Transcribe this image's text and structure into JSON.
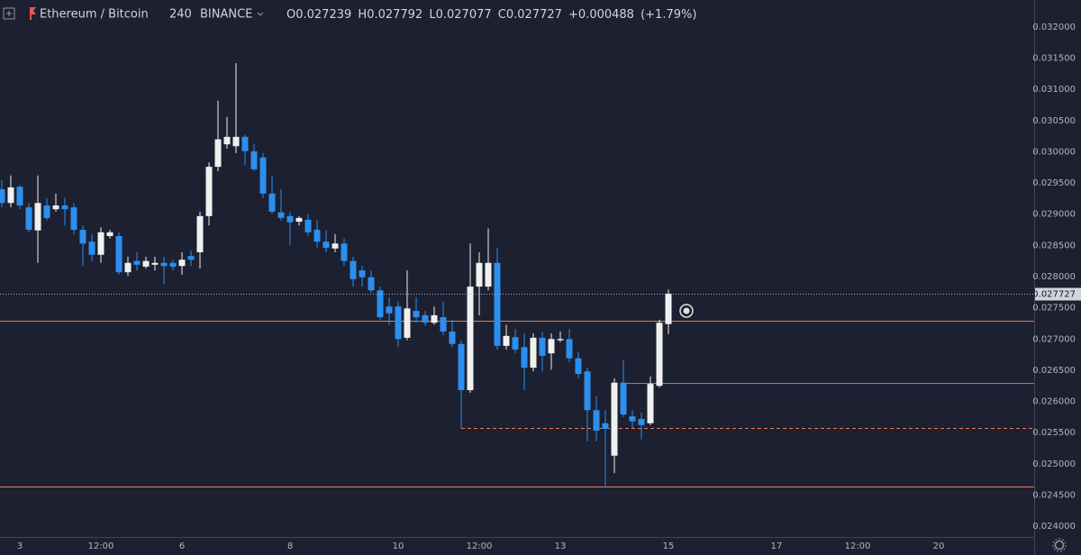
{
  "chart_data": {
    "type": "candlestick",
    "title": "Ethereum / Bitcoin",
    "interval": "240",
    "exchange": "BINANCE",
    "ohlc_labels": [
      "O",
      "H",
      "L",
      "C"
    ],
    "change": "+0.000488",
    "change_pct": "(+1.79%)",
    "up_color": "#f0f0f0",
    "down_color": "#2b8ff0",
    "categories": [
      null,
      null,
      "3",
      null,
      null,
      null,
      null,
      null,
      null,
      null,
      null,
      "12:00",
      null,
      null,
      null,
      null,
      null,
      null,
      null,
      null,
      "6",
      null,
      null,
      null,
      null,
      null,
      null,
      null,
      null,
      null,
      null,
      null,
      "8",
      null,
      null,
      null,
      null,
      null,
      null,
      null,
      null,
      null,
      null,
      null,
      "10",
      null,
      null,
      null,
      null,
      null,
      null,
      null,
      null,
      "12:00",
      null,
      null,
      null,
      null,
      null,
      null,
      null,
      null,
      "13",
      null,
      null,
      null,
      null,
      null,
      null,
      null,
      null,
      null,
      null,
      null,
      "15",
      null,
      null,
      null,
      null,
      null,
      null,
      null,
      null,
      null,
      null,
      null,
      "17",
      null,
      null,
      null,
      null,
      null,
      null,
      null,
      null,
      "12:00",
      null,
      null,
      null,
      null,
      null,
      null,
      null,
      null,
      "20",
      null,
      null,
      null,
      null,
      null,
      null,
      null,
      null,
      null,
      null
    ],
    "open": [
      0.0294,
      0.02918,
      0.02944,
      0.02911,
      0.02874,
      0.02914,
      0.02908,
      0.02914,
      0.02911,
      0.02875,
      0.02856,
      0.02835,
      0.02865,
      0.02865,
      0.02807,
      0.02825,
      0.02816,
      0.02819,
      0.02822,
      0.02822,
      0.02817,
      0.02833,
      0.02839,
      0.02897,
      0.02976,
      0.03012,
      0.03009,
      0.03024,
      0.03001,
      0.02991,
      0.02933,
      0.02903,
      0.02897,
      0.02888,
      0.02891,
      0.02875,
      0.02856,
      0.02845,
      0.02853,
      0.02825,
      0.0281,
      0.02799,
      0.02778,
      0.02752,
      0.02752,
      0.02702,
      0.02745,
      0.02738,
      0.02726,
      0.02735,
      0.02712,
      0.02692,
      0.02618,
      0.02784,
      0.02784,
      0.02822,
      0.02689,
      0.02703,
      0.02687,
      0.02654,
      0.02702,
      0.02677,
      0.02698,
      0.027,
      0.02669,
      0.02648,
      0.02586,
      0.02565,
      0.02513,
      0.0263,
      0.02576,
      0.02572,
      0.02565,
      0.02625,
      0.027239,
      null,
      null,
      null,
      null,
      null,
      null,
      null,
      null,
      null,
      null,
      null,
      null,
      null,
      null,
      null,
      null,
      null,
      null,
      null,
      null,
      null,
      null,
      null,
      null,
      null,
      null,
      null,
      null,
      null,
      null,
      null,
      null,
      null,
      null,
      null,
      null,
      null,
      null,
      null,
      null
    ],
    "high": [
      0.02955,
      0.02962,
      0.02947,
      0.02918,
      0.02962,
      0.02926,
      0.02933,
      0.02926,
      0.02918,
      0.02882,
      0.02868,
      0.02879,
      0.02875,
      0.02871,
      0.02832,
      0.02839,
      0.02832,
      0.02832,
      0.02832,
      0.02827,
      0.02839,
      0.02842,
      0.02904,
      0.02983,
      0.03082,
      0.03056,
      0.03142,
      0.03027,
      0.03012,
      0.02998,
      0.02962,
      0.0294,
      0.02904,
      0.02897,
      0.029,
      0.0289,
      0.02875,
      0.02868,
      0.02861,
      0.02832,
      0.02817,
      0.0281,
      0.02784,
      0.02767,
      0.0276,
      0.0281,
      0.02767,
      0.02745,
      0.02752,
      0.0276,
      0.02731,
      0.02698,
      0.02853,
      0.02839,
      0.02877,
      0.02846,
      0.02723,
      0.02716,
      0.02709,
      0.02709,
      0.02712,
      0.02709,
      0.02712,
      0.02716,
      0.0268,
      0.02654,
      0.02608,
      0.02586,
      0.02637,
      0.02666,
      0.02586,
      0.02582,
      0.0264,
      0.02731,
      0.027792,
      null,
      null,
      null,
      null,
      null,
      null,
      null,
      null,
      null,
      null,
      null,
      null,
      null,
      null,
      null,
      null,
      null,
      null,
      null,
      null,
      null,
      null,
      null,
      null,
      null,
      null,
      null,
      null,
      null,
      null,
      null,
      null,
      null,
      null,
      null,
      null,
      null,
      null,
      null,
      null
    ],
    "low": [
      0.02911,
      0.02911,
      0.02908,
      0.02871,
      0.02822,
      0.0289,
      0.02904,
      0.02882,
      0.02868,
      0.02817,
      0.02825,
      0.02822,
      0.02861,
      0.02803,
      0.02801,
      0.0281,
      0.02813,
      0.0281,
      0.02788,
      0.0281,
      0.02803,
      0.02817,
      0.02813,
      0.02882,
      0.02969,
      0.03005,
      0.02998,
      0.02979,
      0.02969,
      0.02926,
      0.029,
      0.0289,
      0.02851,
      0.02882,
      0.02865,
      0.02846,
      0.02839,
      0.02839,
      0.02817,
      0.02784,
      0.02784,
      0.02774,
      0.02731,
      0.02723,
      0.02687,
      0.02698,
      0.02726,
      0.02721,
      0.02723,
      0.02706,
      0.02687,
      0.02557,
      0.02614,
      0.02738,
      0.02778,
      0.02683,
      0.02683,
      0.02677,
      0.02618,
      0.02648,
      0.02648,
      0.02651,
      0.02695,
      0.02663,
      0.02637,
      0.02536,
      0.02536,
      0.02464,
      0.02485,
      0.02575,
      0.02557,
      0.02539,
      0.02562,
      0.02622,
      0.027077,
      null,
      null,
      null,
      null,
      null,
      null,
      null,
      null,
      null,
      null,
      null,
      null,
      null,
      null,
      null,
      null,
      null,
      null,
      null,
      null,
      null,
      null,
      null,
      null,
      null,
      null,
      null,
      null,
      null,
      null,
      null,
      null,
      null,
      null,
      null,
      null,
      null,
      null,
      null,
      null
    ],
    "close": [
      0.02918,
      0.02943,
      0.02914,
      0.02875,
      0.02918,
      0.02894,
      0.02914,
      0.02908,
      0.02875,
      0.02853,
      0.02835,
      0.02871,
      0.02871,
      0.02807,
      0.02822,
      0.02819,
      0.02825,
      0.02822,
      0.02817,
      0.02816,
      0.02827,
      0.02827,
      0.02897,
      0.02976,
      0.0302,
      0.03024,
      0.03024,
      0.03001,
      0.02972,
      0.02933,
      0.02904,
      0.02894,
      0.02887,
      0.02894,
      0.02871,
      0.02856,
      0.02846,
      0.02853,
      0.02825,
      0.02796,
      0.02799,
      0.02778,
      0.02735,
      0.02741,
      0.027,
      0.02749,
      0.02735,
      0.02726,
      0.02738,
      0.02712,
      0.02692,
      0.02618,
      0.02784,
      0.02822,
      0.02822,
      0.02689,
      0.02705,
      0.02683,
      0.02654,
      0.02702,
      0.02673,
      0.027,
      0.027,
      0.02669,
      0.02644,
      0.02586,
      0.02553,
      0.02556,
      0.0263,
      0.02579,
      0.02568,
      0.02562,
      0.02628,
      0.02726,
      0.027727,
      null,
      null,
      null,
      null,
      null,
      null,
      null,
      null,
      null,
      null,
      null,
      null,
      null,
      null,
      null,
      null,
      null,
      null,
      null,
      null,
      null,
      null,
      null,
      null,
      null,
      null,
      null,
      null,
      null,
      null,
      null,
      null,
      null,
      null,
      null,
      null,
      null,
      null,
      null,
      null
    ],
    "ylim": [
      0.023827,
      0.032433
    ],
    "yticks": [
      {
        "value": 0.024,
        "label": "0.024000"
      },
      {
        "value": 0.0245,
        "label": "0.024500"
      },
      {
        "value": 0.025,
        "label": "0.025000"
      },
      {
        "value": 0.0255,
        "label": "0.025500"
      },
      {
        "value": 0.026,
        "label": "0.026000"
      },
      {
        "value": 0.0265,
        "label": "0.026500"
      },
      {
        "value": 0.027,
        "label": "0.027000"
      },
      {
        "value": 0.0275,
        "label": "0.027500"
      },
      {
        "value": 0.028,
        "label": "0.028000"
      },
      {
        "value": 0.0285,
        "label": "0.028500"
      },
      {
        "value": 0.029,
        "label": "0.029000"
      },
      {
        "value": 0.0295,
        "label": "0.029500"
      },
      {
        "value": 0.03,
        "label": "0.030000"
      },
      {
        "value": 0.0305,
        "label": "0.030500"
      },
      {
        "value": 0.031,
        "label": "0.031000"
      },
      {
        "value": 0.0315,
        "label": "0.031500"
      },
      {
        "value": 0.032,
        "label": "0.032000"
      }
    ],
    "levels": [
      {
        "value": 0.02729,
        "color": "#f0784a"
      },
      {
        "value": 0.0263,
        "color": "#2ec22e"
      },
      {
        "value": 0.02557,
        "color": "#f0784a",
        "dashed": true
      },
      {
        "value": 0.02464,
        "color": "#f0784a"
      }
    ]
  }
}
